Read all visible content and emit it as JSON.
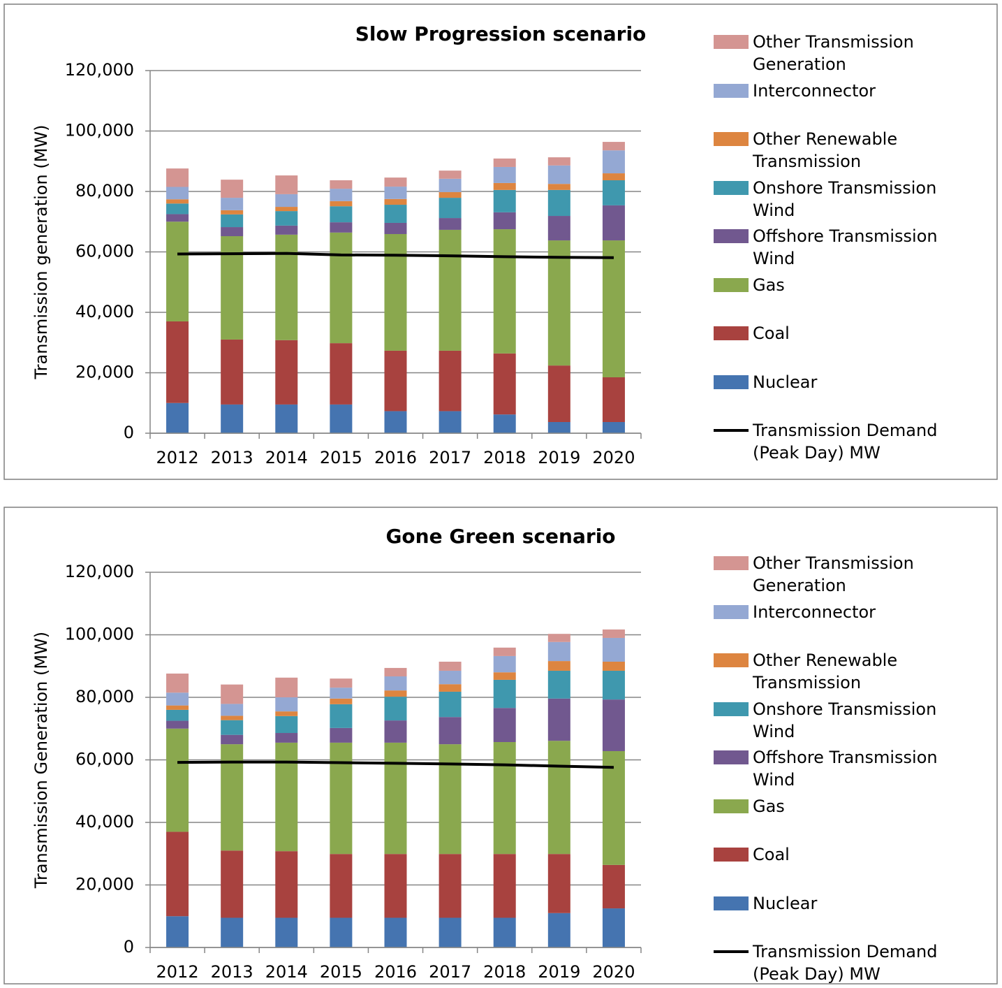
{
  "chart_data": [
    {
      "type": "bar",
      "title": "Slow Progression scenario",
      "ylabel": "Transmission generation (MW)",
      "categories": [
        "2012",
        "2013",
        "2014",
        "2015",
        "2016",
        "2017",
        "2018",
        "2019",
        "2020"
      ],
      "ylim": [
        0,
        120000
      ],
      "yticks": [
        0,
        {
          "value": 20000,
          "label": "20,000"
        },
        {
          "value": 40000,
          "label": "40,000"
        },
        {
          "value": 60000,
          "label": "60,000"
        },
        {
          "value": 80000,
          "label": "80,000"
        },
        {
          "value": 100000,
          "label": "100,000"
        },
        {
          "value": 120000,
          "label": "120,000"
        }
      ],
      "grid": true,
      "stacked": true,
      "series": [
        {
          "name": "Nuclear",
          "color": "#4574b0",
          "values": [
            10000,
            9500,
            9500,
            9500,
            7300,
            7300,
            6200,
            3700,
            3700
          ]
        },
        {
          "name": "Coal",
          "color": "#a8423f",
          "values": [
            27000,
            21500,
            21300,
            20300,
            20000,
            20000,
            20200,
            18700,
            14800
          ]
        },
        {
          "name": "Gas",
          "color": "#8aa84e",
          "values": [
            33000,
            34200,
            34900,
            36600,
            38600,
            40000,
            41100,
            41400,
            45300
          ]
        },
        {
          "name": "Offshore Transmission Wind",
          "color": "#71588f",
          "values": [
            2500,
            3000,
            3000,
            3400,
            3700,
            3900,
            5600,
            8100,
            11600
          ]
        },
        {
          "name": "Onshore Transmission Wind",
          "color": "#3f98ae",
          "values": [
            3500,
            4200,
            4800,
            5300,
            6000,
            6700,
            7400,
            8600,
            8300
          ]
        },
        {
          "name": "Other Renewable Transmission",
          "color": "#dd8540",
          "values": [
            1400,
            1400,
            1400,
            1700,
            1900,
            1900,
            2300,
            2000,
            2300
          ]
        },
        {
          "name": "Interconnector",
          "color": "#94a8d3",
          "values": [
            4100,
            4100,
            4200,
            4100,
            4100,
            4400,
            5300,
            6100,
            7600
          ]
        },
        {
          "name": "Other Transmission Generation",
          "color": "#d49592",
          "values": [
            6100,
            6000,
            6200,
            2800,
            3000,
            2700,
            2800,
            2700,
            2800
          ]
        },
        {
          "name": "Transmission Demand (Peak Day) MW",
          "type": "line",
          "color": "#000000",
          "values": [
            59300,
            59400,
            59500,
            59000,
            58900,
            58700,
            58400,
            58200,
            58100
          ]
        }
      ]
    },
    {
      "type": "bar",
      "title": "Gone Green scenario",
      "ylabel": "Transmission Generation (MW)",
      "categories": [
        "2012",
        "2013",
        "2014",
        "2015",
        "2016",
        "2017",
        "2018",
        "2019",
        "2020"
      ],
      "ylim": [
        0,
        120000
      ],
      "yticks": [
        0,
        {
          "value": 20000,
          "label": "20,000"
        },
        {
          "value": 40000,
          "label": "40,000"
        },
        {
          "value": 60000,
          "label": "60,000"
        },
        {
          "value": 80000,
          "label": "80,000"
        },
        {
          "value": 100000,
          "label": "100,000"
        },
        {
          "value": 120000,
          "label": "120,000"
        }
      ],
      "grid": true,
      "stacked": true,
      "series": [
        {
          "name": "Nuclear",
          "color": "#4574b0",
          "values": [
            10000,
            9500,
            9500,
            9500,
            9500,
            9500,
            9500,
            11000,
            12500
          ]
        },
        {
          "name": "Coal",
          "color": "#a8423f",
          "values": [
            27000,
            21500,
            21300,
            20400,
            20400,
            20400,
            20400,
            18900,
            13900
          ]
        },
        {
          "name": "Gas",
          "color": "#8aa84e",
          "values": [
            33000,
            34000,
            34700,
            35600,
            35600,
            35100,
            35800,
            36200,
            36400
          ]
        },
        {
          "name": "Offshore Transmission Wind",
          "color": "#71588f",
          "values": [
            2500,
            3000,
            3100,
            4700,
            7100,
            8700,
            10900,
            13500,
            16500
          ]
        },
        {
          "name": "Onshore Transmission Wind",
          "color": "#3f98ae",
          "values": [
            3500,
            4700,
            5400,
            7600,
            7600,
            8100,
            9000,
            8900,
            9200
          ]
        },
        {
          "name": "Other Renewable Transmission",
          "color": "#dd8540",
          "values": [
            1400,
            1400,
            1500,
            1800,
            2000,
            2400,
            2400,
            3100,
            2900
          ]
        },
        {
          "name": "Interconnector",
          "color": "#94a8d3",
          "values": [
            4100,
            3800,
            4500,
            3500,
            4500,
            4300,
            5200,
            6100,
            7600
          ]
        },
        {
          "name": "Other Transmission Generation",
          "color": "#d49592",
          "values": [
            6100,
            6200,
            6300,
            2900,
            2700,
            2900,
            2700,
            2600,
            2700
          ]
        },
        {
          "name": "Transmission Demand (Peak Day) MW",
          "type": "line",
          "color": "#000000",
          "values": [
            59200,
            59300,
            59300,
            59100,
            58900,
            58700,
            58400,
            58000,
            57600
          ]
        }
      ]
    }
  ]
}
